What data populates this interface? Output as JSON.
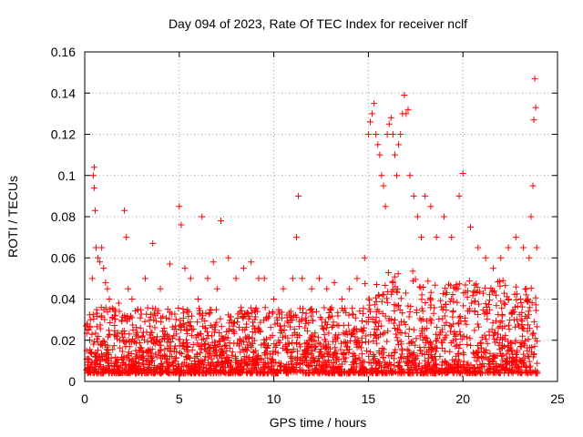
{
  "chart_data": {
    "type": "scatter",
    "title": "Day 094 of 2023, Rate Of TEC Index for receiver nclf",
    "xlabel": "GPS time / hours",
    "ylabel": "ROTI / TECUs",
    "xlim": [
      0,
      25
    ],
    "ylim": [
      0,
      0.16
    ],
    "xticks": [
      0,
      5,
      10,
      15,
      20,
      25
    ],
    "xtick_labels": [
      "0",
      "5",
      "10",
      "15",
      "20",
      "25"
    ],
    "yticks": [
      0,
      0.02,
      0.04,
      0.06,
      0.08,
      0.1,
      0.12,
      0.14,
      0.16
    ],
    "ytick_labels": [
      "0",
      "0.02",
      "0.04",
      "0.06",
      "0.08",
      "0.1",
      "0.12",
      "0.14",
      "0.16"
    ],
    "grid": true,
    "marker": "+",
    "color": "#ff0000",
    "series": [
      {
        "name": "ROTI",
        "x": [
          0.1,
          0.2,
          0.3,
          0.4,
          0.45,
          0.5,
          0.5,
          0.55,
          0.6,
          0.7,
          0.8,
          0.9,
          1.0,
          1.1,
          1.2,
          1.3,
          1.5,
          1.8,
          2.1,
          2.2,
          2.3,
          2.5,
          2.8,
          3.2,
          3.6,
          4.0,
          4.5,
          5.0,
          5.1,
          5.3,
          5.6,
          6.0,
          6.2,
          6.5,
          6.8,
          7.0,
          7.2,
          7.6,
          8.0,
          8.4,
          8.8,
          9.2,
          9.5,
          10.0,
          10.5,
          11.0,
          11.2,
          11.3,
          11.5,
          12.0,
          12.4,
          12.8,
          13.2,
          13.6,
          14.0,
          14.4,
          14.8,
          15.0,
          15.1,
          15.2,
          15.3,
          15.4,
          15.5,
          15.6,
          15.7,
          15.8,
          15.9,
          16.0,
          16.1,
          16.2,
          16.3,
          16.4,
          16.5,
          16.6,
          16.7,
          16.8,
          16.9,
          17.0,
          17.1,
          17.2,
          17.4,
          17.6,
          17.8,
          18.0,
          18.3,
          18.6,
          19.0,
          19.4,
          19.8,
          20.0,
          20.4,
          20.8,
          21.2,
          21.6,
          22.0,
          22.4,
          22.8,
          23.2,
          23.5,
          23.6,
          23.7,
          23.75,
          23.8,
          23.85,
          23.9
        ],
        "y": [
          0.015,
          0.025,
          0.03,
          0.05,
          0.1,
          0.104,
          0.094,
          0.083,
          0.065,
          0.06,
          0.058,
          0.065,
          0.055,
          0.048,
          0.045,
          0.04,
          0.035,
          0.038,
          0.083,
          0.07,
          0.045,
          0.04,
          0.035,
          0.05,
          0.067,
          0.045,
          0.057,
          0.085,
          0.076,
          0.055,
          0.05,
          0.04,
          0.08,
          0.05,
          0.058,
          0.045,
          0.078,
          0.06,
          0.05,
          0.055,
          0.058,
          0.05,
          0.05,
          0.04,
          0.045,
          0.05,
          0.07,
          0.09,
          0.05,
          0.045,
          0.05,
          0.045,
          0.048,
          0.04,
          0.045,
          0.05,
          0.06,
          0.12,
          0.126,
          0.13,
          0.135,
          0.12,
          0.115,
          0.11,
          0.1,
          0.095,
          0.085,
          0.12,
          0.125,
          0.128,
          0.12,
          0.11,
          0.1,
          0.115,
          0.12,
          0.13,
          0.139,
          0.13,
          0.132,
          0.1,
          0.09,
          0.08,
          0.07,
          0.09,
          0.085,
          0.07,
          0.08,
          0.07,
          0.09,
          0.101,
          0.075,
          0.065,
          0.06,
          0.055,
          0.06,
          0.065,
          0.07,
          0.065,
          0.06,
          0.08,
          0.095,
          0.127,
          0.147,
          0.133,
          0.065
        ]
      }
    ]
  }
}
